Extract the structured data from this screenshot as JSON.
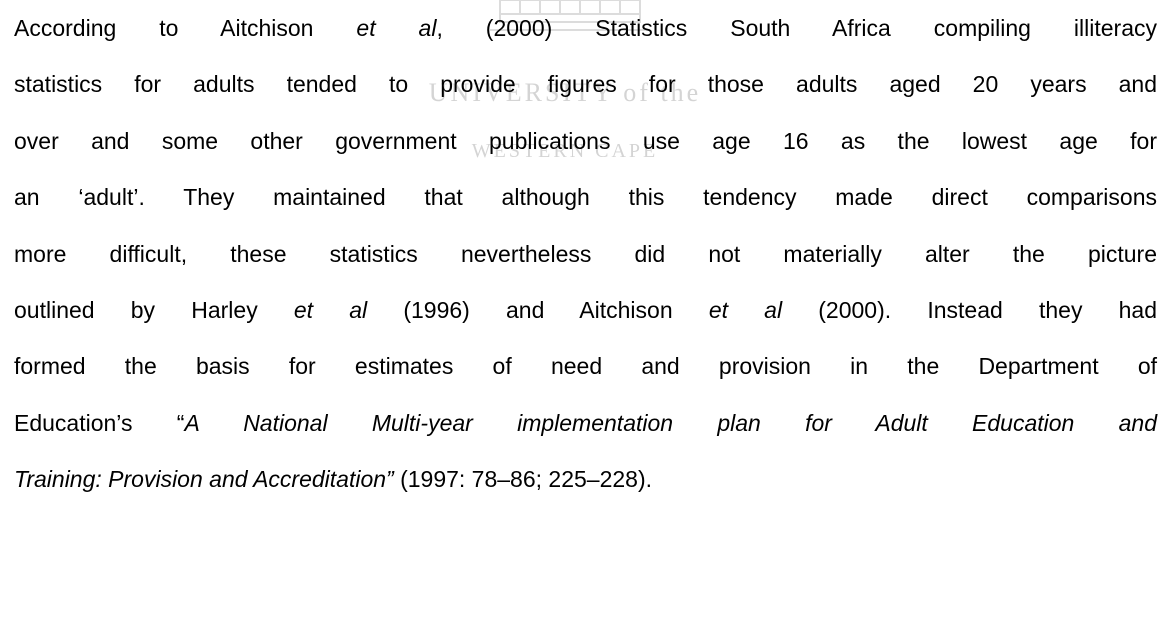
{
  "watermark": {
    "line1": "UNIVERSITY of the",
    "line2": "WESTERN CAPE"
  },
  "paragraph": {
    "lines": [
      [
        {
          "text": "According to Aitchison "
        },
        {
          "text": "et al",
          "italic": true
        },
        {
          "text": ", (2000) Statistics South Africa compiling illiteracy"
        }
      ],
      [
        {
          "text": "statistics for adults tended to provide figures for those adults aged 20 years and"
        }
      ],
      [
        {
          "text": "over and some other government publications use age 16 as the lowest age for"
        }
      ],
      [
        {
          "text": "an ‘adult’. They maintained that although this tendency made direct comparisons"
        }
      ],
      [
        {
          "text": "more difficult, these statistics nevertheless did not materially alter the picture"
        }
      ],
      [
        {
          "text": "outlined by Harley "
        },
        {
          "text": "et al",
          "italic": true
        },
        {
          "text": " (1996) and Aitchison "
        },
        {
          "text": "et al",
          "italic": true
        },
        {
          "text": " (2000). Instead they had"
        }
      ],
      [
        {
          "text": "formed the basis for estimates of need and provision in the Department of"
        }
      ],
      [
        {
          "text": "Education’s “"
        },
        {
          "text": "A National Multi-year implementation plan for Adult Education and",
          "italic": true
        }
      ],
      [
        {
          "text": "Training: Provision and Accreditation”",
          "italic": true
        },
        {
          "text": " (1997: 78–86; 225–228)."
        }
      ]
    ]
  }
}
